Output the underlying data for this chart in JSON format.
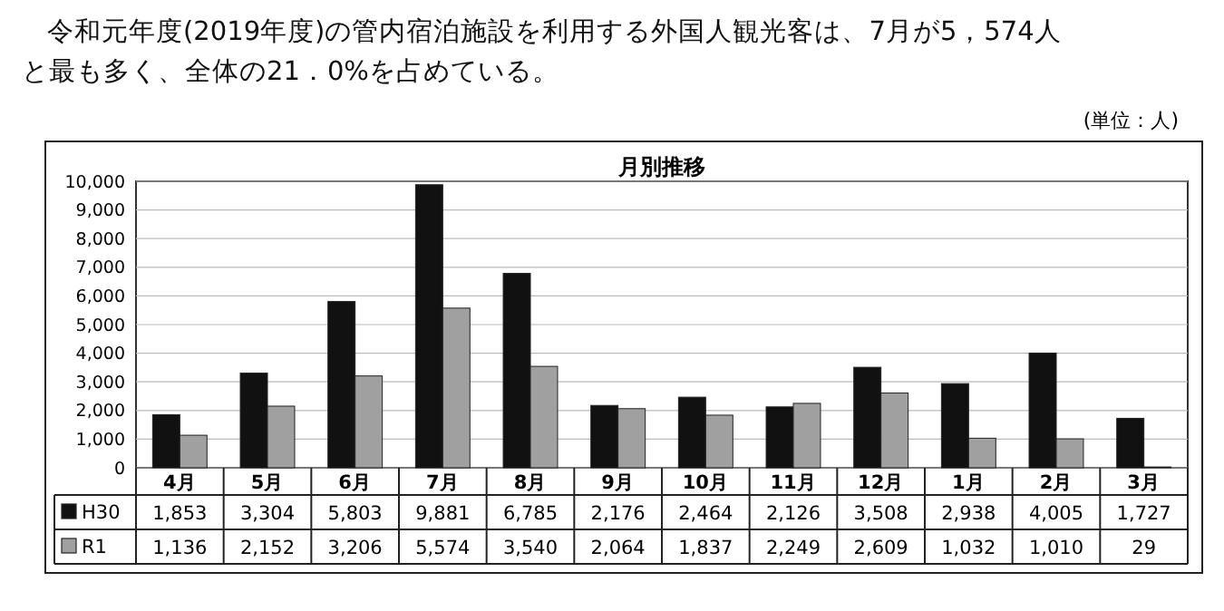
{
  "chart_data": {
    "type": "bar",
    "title": "月別推移",
    "annotations": [
      "令和元年度(2019年度)の管内宿泊施設を利用する外国人観光客は、7月が5，574人と最も多く、全体の21．0%を占めている。",
      "(単位：人)"
    ],
    "categories": [
      "4月",
      "5月",
      "6月",
      "7月",
      "8月",
      "9月",
      "10月",
      "11月",
      "12月",
      "1月",
      "2月",
      "3月"
    ],
    "series": [
      {
        "name": "H30",
        "color": "#111111",
        "values": [
          1853,
          3304,
          5803,
          9881,
          6785,
          2176,
          2464,
          2126,
          3508,
          2938,
          4005,
          1727
        ],
        "value_labels": [
          "1,853",
          "3,304",
          "5,803",
          "9,881",
          "6,785",
          "2,176",
          "2,464",
          "2,126",
          "3,508",
          "2,938",
          "4,005",
          "1,727"
        ]
      },
      {
        "name": "R1",
        "color": "#a0a0a0",
        "values": [
          1136,
          2152,
          3206,
          5574,
          3540,
          2064,
          1837,
          2249,
          2609,
          1032,
          1010,
          29
        ],
        "value_labels": [
          "1,136",
          "2,152",
          "3,206",
          "5,574",
          "3,540",
          "2,064",
          "1,837",
          "2,249",
          "2,609",
          "1,032",
          "1,010",
          "29"
        ]
      }
    ],
    "ylim": [
      0,
      10000
    ],
    "yticks": [
      {
        "value": 0,
        "label": "0"
      },
      {
        "value": 1000,
        "label": "1,000"
      },
      {
        "value": 2000,
        "label": "2,000"
      },
      {
        "value": 3000,
        "label": "3,000"
      },
      {
        "value": 4000,
        "label": "4,000"
      },
      {
        "value": 5000,
        "label": "5,000"
      },
      {
        "value": 6000,
        "label": "6,000"
      },
      {
        "value": 7000,
        "label": "7,000"
      },
      {
        "value": 8000,
        "label": "8,000"
      },
      {
        "value": 9000,
        "label": "9,000"
      },
      {
        "value": 10000,
        "label": "10,000"
      }
    ],
    "grid": "y",
    "legend": "bottom left"
  }
}
